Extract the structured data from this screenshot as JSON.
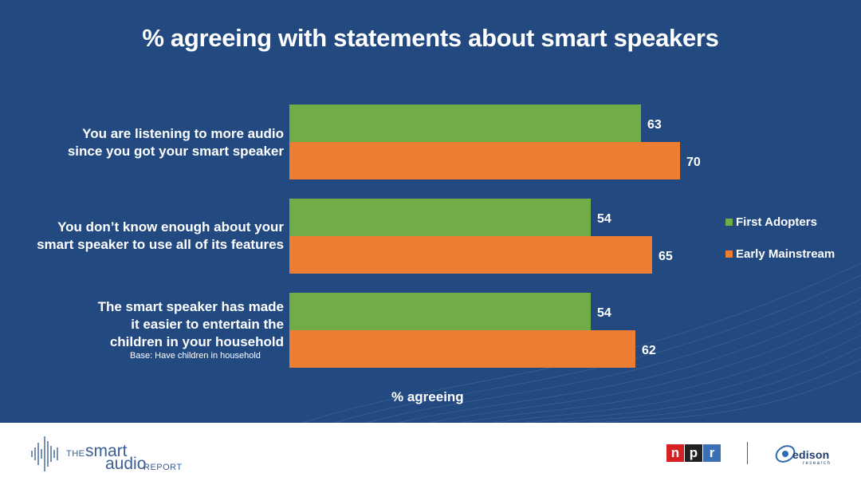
{
  "chart_data": {
    "type": "bar",
    "orientation": "horizontal",
    "title": "% agreeing with statements about smart speakers",
    "xlabel": "% agreeing",
    "ylabel": "",
    "xlim": [
      0,
      100
    ],
    "grid": false,
    "legend_position": "right",
    "categories": [
      "You are listening to more audio since you got your smart speaker",
      "You don’t know enough about your smart speaker to use all of its features",
      "The smart speaker has made it easier to entertain the children in your household"
    ],
    "category_lines": [
      [
        "You are listening to more audio",
        "since you got your smart speaker"
      ],
      [
        "You don’t know enough about your",
        "smart speaker to use all of its features"
      ],
      [
        "The smart speaker has made",
        "it easier to entertain the",
        "children in your household"
      ]
    ],
    "category_note": "Base: Have children in household",
    "series": [
      {
        "name": "First Adopters",
        "color": "#70ad47",
        "values": [
          63,
          54,
          54
        ]
      },
      {
        "name": "Early Mainstream",
        "color": "#ed7d31",
        "values": [
          70,
          65,
          62
        ]
      }
    ]
  },
  "footer": {
    "report_the": "THE",
    "report_smart": "smart",
    "report_audio": "audio",
    "report_report": "REPORT",
    "npr_letters": [
      "n",
      "p",
      "r"
    ],
    "npr_colors": [
      "#d62021",
      "#222222",
      "#3a6fb5"
    ],
    "edison_word": "edison",
    "edison_sub": "research"
  }
}
